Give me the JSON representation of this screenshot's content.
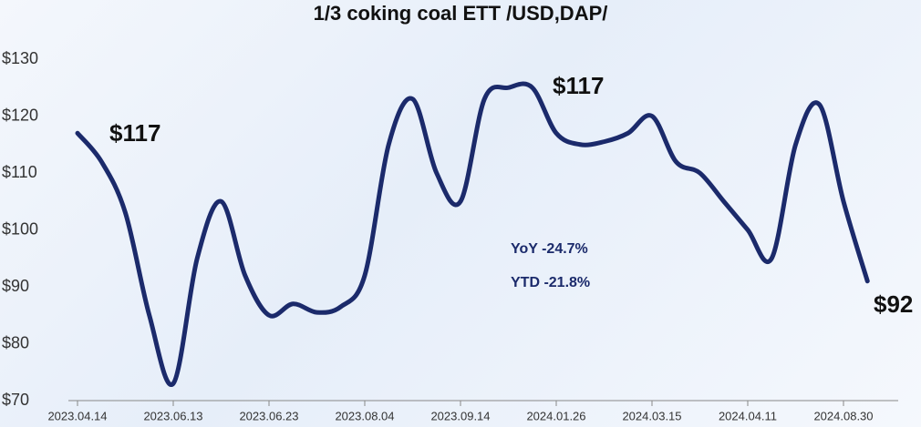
{
  "chart_data": {
    "type": "line",
    "title": "1/3 coking coal ETT /USD,DAP/",
    "categories": [
      "2023.04.14",
      null,
      null,
      null,
      "2023.06.13",
      null,
      null,
      null,
      "2023.06.23",
      null,
      null,
      null,
      "2023.08.04",
      null,
      null,
      null,
      "2023.09.14",
      null,
      null,
      null,
      "2024.01.26",
      null,
      null,
      null,
      "2024.03.15",
      null,
      null,
      null,
      "2024.04.11",
      null,
      null,
      null,
      "2024.08.30",
      null
    ],
    "series": [
      {
        "name": "1/3 coking coal",
        "color": "#1b2a6b",
        "values": [
          117,
          112,
          103,
          85,
          73,
          95,
          105,
          92,
          85,
          87,
          85.5,
          86.5,
          92,
          115,
          123,
          110,
          105,
          123,
          125,
          125,
          117,
          115,
          115.5,
          117,
          120,
          112,
          110,
          105,
          100,
          95,
          115,
          122,
          105,
          91
        ]
      }
    ],
    "ylim": [
      70,
      130
    ],
    "yticks": [
      {
        "value": 70,
        "label": "$70"
      },
      {
        "value": 80,
        "label": "$80"
      },
      {
        "value": 90,
        "label": "$90"
      },
      {
        "value": 100,
        "label": "$100"
      },
      {
        "value": 110,
        "label": "$110"
      },
      {
        "value": 120,
        "label": "$120"
      },
      {
        "value": 130,
        "label": "$130"
      }
    ],
    "annotations": [
      "$117",
      "$117",
      "$92",
      "YoY -24.7%",
      "YTD -21.8%"
    ]
  }
}
